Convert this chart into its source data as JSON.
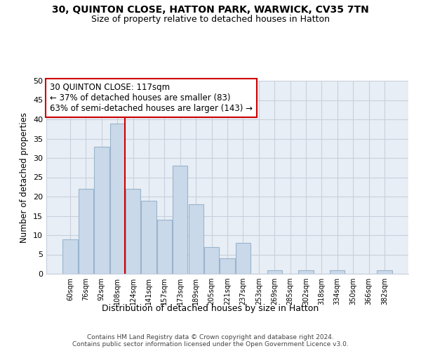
{
  "title": "30, QUINTON CLOSE, HATTON PARK, WARWICK, CV35 7TN",
  "subtitle": "Size of property relative to detached houses in Hatton",
  "xlabel": "Distribution of detached houses by size in Hatton",
  "ylabel": "Number of detached properties",
  "bar_labels": [
    "60sqm",
    "76sqm",
    "92sqm",
    "108sqm",
    "124sqm",
    "141sqm",
    "157sqm",
    "173sqm",
    "189sqm",
    "205sqm",
    "221sqm",
    "237sqm",
    "253sqm",
    "269sqm",
    "285sqm",
    "302sqm",
    "318sqm",
    "334sqm",
    "350sqm",
    "366sqm",
    "382sqm"
  ],
  "bar_values": [
    9,
    22,
    33,
    39,
    22,
    19,
    14,
    28,
    18,
    7,
    4,
    8,
    0,
    1,
    0,
    1,
    0,
    1,
    0,
    0,
    1
  ],
  "bar_color": "#c9d9ea",
  "bar_edge_color": "#9ab4cc",
  "vline_x": 3.5,
  "vline_color": "#cc0000",
  "annotation_text": "30 QUINTON CLOSE: 117sqm\n← 37% of detached houses are smaller (83)\n63% of semi-detached houses are larger (143) →",
  "annotation_box_color": "#ffffff",
  "annotation_box_edge": "#cc0000",
  "ylim": [
    0,
    50
  ],
  "yticks": [
    0,
    5,
    10,
    15,
    20,
    25,
    30,
    35,
    40,
    45,
    50
  ],
  "footer_line1": "Contains HM Land Registry data © Crown copyright and database right 2024.",
  "footer_line2": "Contains public sector information licensed under the Open Government Licence v3.0.",
  "bg_color": "#ffffff",
  "plot_bg_color": "#e8eef5"
}
